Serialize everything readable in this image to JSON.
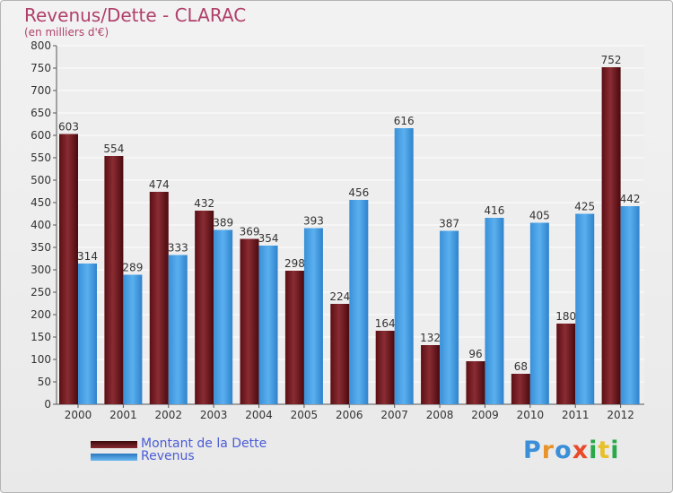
{
  "header": {
    "title": "Revenus/Dette - CLARAC",
    "unit": "(en milliers d'€)"
  },
  "chart_data": {
    "type": "bar",
    "title": "Revenus/Dette - CLARAC",
    "ylabel": "(en milliers d'€)",
    "xlabel": "",
    "categories": [
      "2000",
      "2001",
      "2002",
      "2003",
      "2004",
      "2005",
      "2006",
      "2007",
      "2008",
      "2009",
      "2010",
      "2011",
      "2012"
    ],
    "series": [
      {
        "name": "Montant de la Dette",
        "color": "#7a1f24",
        "values": [
          603,
          554,
          474,
          432,
          369,
          298,
          224,
          164,
          132,
          96,
          68,
          180,
          752
        ]
      },
      {
        "name": "Revenus",
        "color": "#3d9be0",
        "values": [
          314,
          289,
          333,
          389,
          354,
          393,
          456,
          616,
          387,
          416,
          405,
          425,
          442
        ]
      }
    ],
    "ylim": [
      0,
      800
    ],
    "yticks": [
      0,
      50,
      100,
      150,
      200,
      250,
      300,
      350,
      400,
      450,
      500,
      550,
      600,
      650,
      700,
      750,
      800
    ],
    "grid": true,
    "legend": "bottom-left"
  },
  "legend": {
    "items": [
      {
        "label": "Montant de la Dette",
        "color": "#7a1f24"
      },
      {
        "label": "Revenus",
        "color": "#3d9be0"
      }
    ]
  },
  "logo": {
    "letters": [
      "P",
      "r",
      "o",
      "x",
      "i",
      "t",
      "i"
    ],
    "colors": [
      "#3a8fd8",
      "#e8932a",
      "#3a8fd8",
      "#e84a2a",
      "#2aa84a",
      "#e8c02a",
      "#2aa84a"
    ]
  }
}
